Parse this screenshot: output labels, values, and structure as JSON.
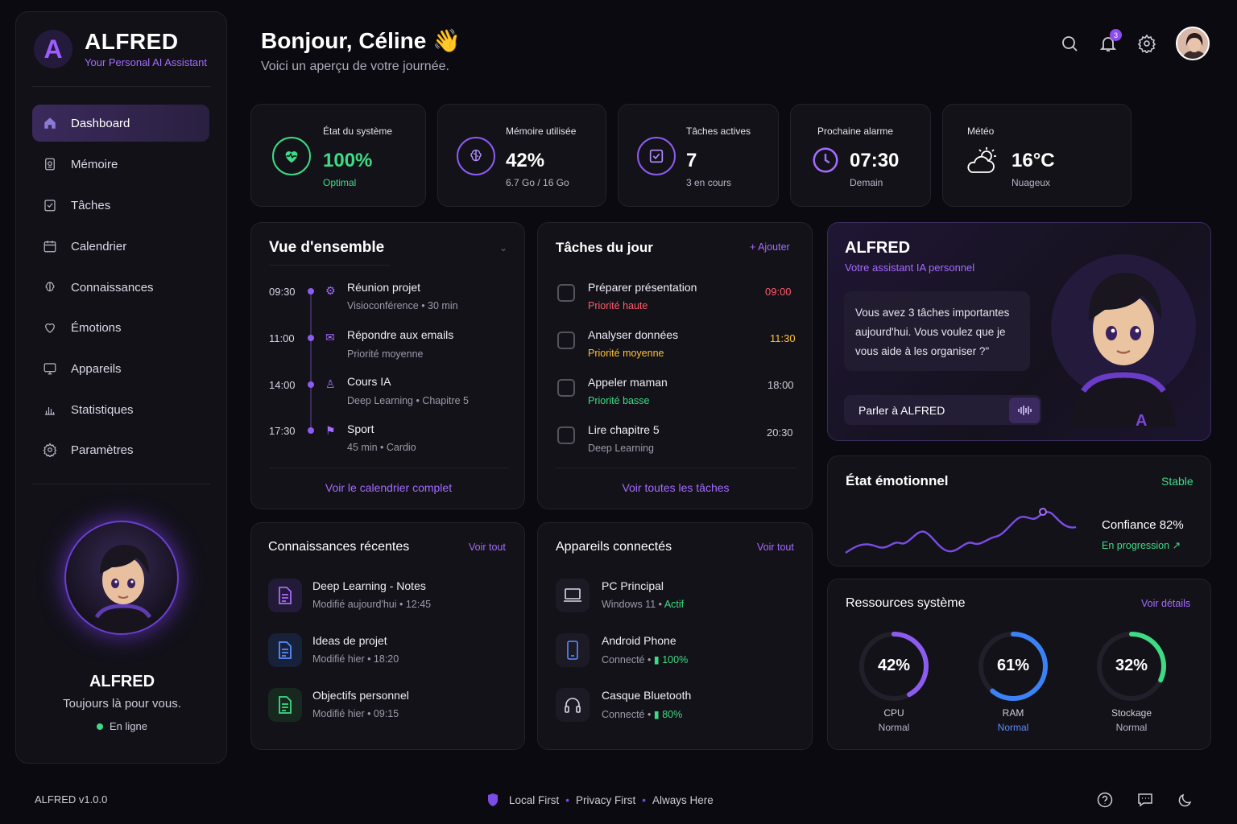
{
  "brand": {
    "logo_letter": "A",
    "name": "ALFRED",
    "tagline": "Your Personal AI Assistant"
  },
  "sidebar": {
    "items": [
      {
        "label": "Dashboard",
        "icon": "home-icon",
        "active": true
      },
      {
        "label": "Mémoire",
        "icon": "memory-icon"
      },
      {
        "label": "Tâches",
        "icon": "checklist-icon"
      },
      {
        "label": "Calendrier",
        "icon": "calendar-icon"
      },
      {
        "label": "Connaissances",
        "icon": "brain-icon"
      },
      {
        "label": "Émotions",
        "icon": "heart-icon"
      },
      {
        "label": "Appareils",
        "icon": "monitor-icon"
      },
      {
        "label": "Statistiques",
        "icon": "bar-chart-icon"
      },
      {
        "label": "Paramètres",
        "icon": "gear-icon"
      }
    ],
    "profile": {
      "name": "ALFRED",
      "tagline": "Toujours là pour vous.",
      "status": "En ligne"
    }
  },
  "header": {
    "greeting": "Bonjour, Céline 👋",
    "subtitle": "Voici un aperçu de votre journée.",
    "notification_count": "3"
  },
  "stats": [
    {
      "title": "État du système",
      "value": "100%",
      "sub": "Optimal",
      "color": "#3ddc84",
      "icon": "heartbeat-icon"
    },
    {
      "title": "Mémoire utilisée",
      "value": "42%",
      "sub": "6.7 Go / 16 Go",
      "color": "#8c5cf0",
      "icon": "brain-icon"
    },
    {
      "title": "Tâches actives",
      "value": "7",
      "sub": "3 en cours",
      "color": "#8c5cf0",
      "icon": "checkbox-icon"
    },
    {
      "title": "Prochaine alarme",
      "value": "07:30",
      "sub": "Demain",
      "color": "#8c5cf0",
      "icon": "clock-icon"
    },
    {
      "title": "Météo",
      "value": "16°C",
      "sub": "Nuageux",
      "color": "#ffffff",
      "icon": "cloud-sun-icon"
    }
  ],
  "overview": {
    "title": "Vue d'ensemble",
    "link": "Voir le calendrier complet",
    "events": [
      {
        "time": "09:30",
        "title": "Réunion projet",
        "sub": "Visioconférence • 30 min",
        "icon": "meeting-icon"
      },
      {
        "time": "11:00",
        "title": "Répondre aux emails",
        "sub": "Priorité moyenne",
        "icon": "mail-icon"
      },
      {
        "time": "14:00",
        "title": "Cours IA",
        "sub": "Deep Learning • Chapitre 5",
        "icon": "user-icon"
      },
      {
        "time": "17:30",
        "title": "Sport",
        "sub": "45 min • Cardio",
        "icon": "sport-icon"
      }
    ]
  },
  "tasks": {
    "title": "Tâches du jour",
    "add": "+ Ajouter",
    "link": "Voir toutes les tâches",
    "items": [
      {
        "title": "Préparer présentation",
        "sub": "Priorité haute",
        "time": "09:00",
        "sub_color": "#ff5a6a",
        "time_color": "#ff5a6a"
      },
      {
        "title": "Analyser données",
        "sub": "Priorité moyenne",
        "time": "11:30",
        "sub_color": "#ffc233",
        "time_color": "#ffc233"
      },
      {
        "title": "Appeler maman",
        "sub": "Priorité basse",
        "time": "18:00",
        "sub_color": "#3ddc84",
        "time_color": "#cfcbd8"
      },
      {
        "title": "Lire chapitre 5",
        "sub": "Deep Learning",
        "time": "20:30",
        "sub_color": "#9d99a9",
        "time_color": "#cfcbd8"
      }
    ]
  },
  "assistant": {
    "title": "ALFRED",
    "subtitle": "Votre assistant IA personnel",
    "message": "Vous avez 3 tâches importantes aujourd'hui. Vous voulez que je vous aide à les organiser ?\"",
    "button": "Parler à ALFRED"
  },
  "emotion": {
    "title": "État émotionnel",
    "status": "Stable",
    "confidence": "Confiance 82%",
    "trend": "En progression ↗"
  },
  "knowledge": {
    "title": "Connaissances récentes",
    "link": "Voir tout",
    "items": [
      {
        "title": "Deep Learning - Notes",
        "sub": "Modifié aujourd'hui • 12:45",
        "color": "#8c5cf0",
        "icon": "document-icon"
      },
      {
        "title": "Ideas de projet",
        "sub": "Modifié hier • 18:20",
        "color": "#4a8cff",
        "icon": "document-icon"
      },
      {
        "title": "Objectifs personnel",
        "sub": "Modifié hier • 09:15",
        "color": "#3ddc84",
        "icon": "document-icon"
      }
    ]
  },
  "devices": {
    "title": "Appareils connectés",
    "link": "Voir tout",
    "items": [
      {
        "title": "PC Principal",
        "sub": "Windows 11 •",
        "status": "Actif",
        "icon": "laptop-icon"
      },
      {
        "title": "Android Phone",
        "sub": "Connecté •",
        "status": "100%",
        "icon": "phone-icon"
      },
      {
        "title": "Casque Bluetooth",
        "sub": "Connecté •",
        "status": "80%",
        "icon": "headphones-icon"
      }
    ]
  },
  "resources": {
    "title": "Ressources système",
    "link": "Voir détails",
    "gauges": [
      {
        "value": "42%",
        "label": "CPU",
        "status": "Normal",
        "fraction": 0.42,
        "color": "#8c5cf0",
        "status_color": "#b9b5c4"
      },
      {
        "value": "61%",
        "label": "RAM",
        "status": "Normal",
        "fraction": 0.61,
        "color": "#3b82f6",
        "status_color": "#5b8cff"
      },
      {
        "value": "32%",
        "label": "Stockage",
        "status": "Normal",
        "fraction": 0.32,
        "color": "#3ddc84",
        "status_color": "#b9b5c4"
      }
    ]
  },
  "footer": {
    "version": "ALFRED v1.0.0",
    "mottos": [
      "Local First",
      "Privacy First",
      "Always Here"
    ]
  }
}
